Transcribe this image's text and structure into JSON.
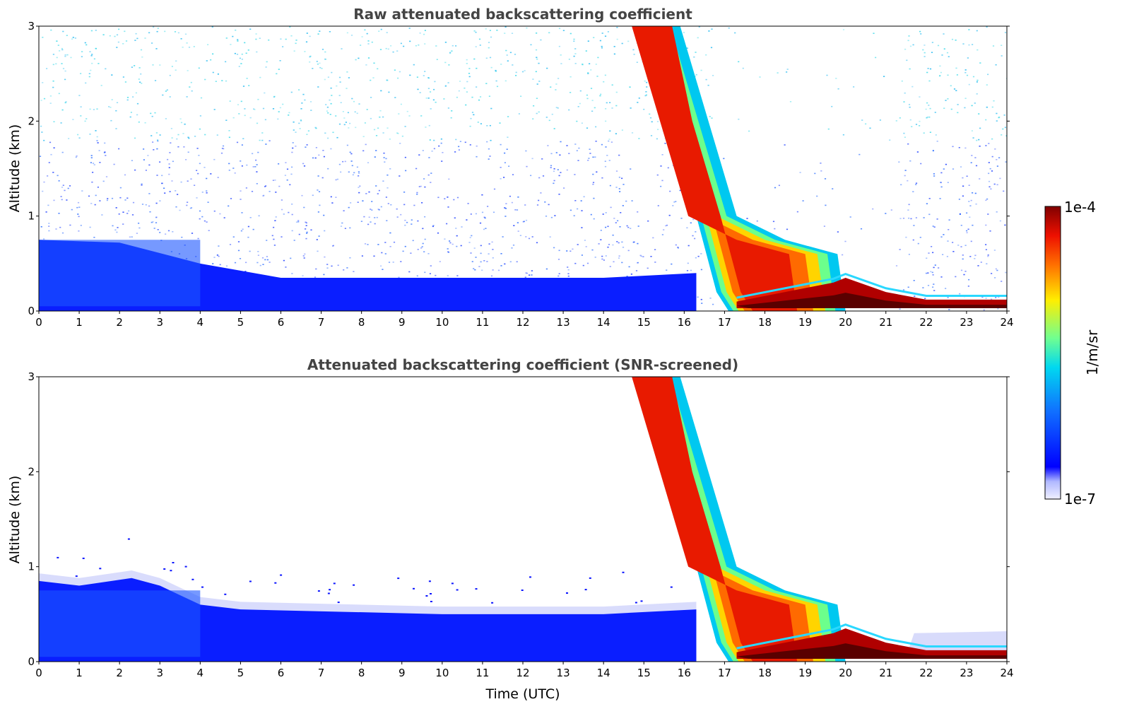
{
  "chart_data": [
    {
      "type": "heatmap",
      "title": "Raw attenuated backscattering coefficient",
      "ylabel": "Altitude (km)",
      "xlabel": "",
      "xlim": [
        0,
        24
      ],
      "ylim": [
        0,
        3
      ],
      "xticks": [
        "0",
        "1",
        "2",
        "3",
        "4",
        "5",
        "6",
        "7",
        "8",
        "9",
        "10",
        "11",
        "12",
        "13",
        "14",
        "15",
        "16",
        "17",
        "18",
        "19",
        "20",
        "21",
        "22",
        "23",
        "24"
      ],
      "yticks": [
        "0",
        "1",
        "2",
        "3"
      ],
      "screened": false,
      "features": {
        "boundary_layer_top_km": {
          "x": [
            0,
            2,
            4,
            6,
            10,
            14,
            16.3
          ],
          "y": [
            0.75,
            0.72,
            0.5,
            0.35,
            0.35,
            0.35,
            0.4
          ]
        },
        "cloud_plume_edges": {
          "left_x": [
            15.1,
            15.6,
            16.3,
            16.8,
            17.1
          ],
          "left_y": [
            3.0,
            2.0,
            1.0,
            0.2,
            0.0
          ],
          "right_x": [
            15.9,
            16.6,
            17.3,
            18.5,
            19.8,
            20.0
          ],
          "right_y": [
            3.0,
            2.0,
            1.0,
            0.75,
            0.6,
            0.0
          ]
        },
        "dense_layer": {
          "x": [
            17.3,
            19.7,
            20.0,
            21.0,
            22.0,
            24.0
          ],
          "y": [
            0.1,
            0.3,
            0.35,
            0.2,
            0.12,
            0.12
          ]
        }
      }
    },
    {
      "type": "heatmap",
      "title": "Attenuated backscattering coefficient (SNR-screened)",
      "ylabel": "Altitude (km)",
      "xlabel": "Time (UTC)",
      "xlim": [
        0,
        24
      ],
      "ylim": [
        0,
        3
      ],
      "xticks": [
        "0",
        "1",
        "2",
        "3",
        "4",
        "5",
        "6",
        "7",
        "8",
        "9",
        "10",
        "11",
        "12",
        "13",
        "14",
        "15",
        "16",
        "17",
        "18",
        "19",
        "20",
        "21",
        "22",
        "23",
        "24"
      ],
      "yticks": [
        "0",
        "1",
        "2",
        "3"
      ],
      "screened": true,
      "features": {
        "boundary_layer_top_km": {
          "x": [
            0,
            1,
            2.3,
            3,
            4,
            5,
            10,
            14,
            16.3
          ],
          "y": [
            0.85,
            0.8,
            0.88,
            0.8,
            0.6,
            0.55,
            0.5,
            0.5,
            0.55
          ]
        },
        "cloud_plume_edges": {
          "left_x": [
            15.1,
            15.6,
            16.3,
            16.8,
            17.1
          ],
          "left_y": [
            3.0,
            2.0,
            1.0,
            0.2,
            0.0
          ],
          "right_x": [
            15.9,
            16.6,
            17.3,
            18.5,
            19.8,
            20.0
          ],
          "right_y": [
            3.0,
            2.0,
            1.0,
            0.75,
            0.6,
            0.0
          ]
        },
        "dense_layer": {
          "x": [
            17.3,
            19.7,
            20.0,
            21.0,
            22.0,
            24.0
          ],
          "y": [
            0.1,
            0.3,
            0.35,
            0.2,
            0.12,
            0.12
          ]
        }
      }
    }
  ],
  "colorbar": {
    "label": "1/m/sr",
    "max_label": "1e-4",
    "min_label": "1e-7",
    "range": [
      1e-07,
      0.0001
    ],
    "scale": "log",
    "colormap": "jet"
  }
}
